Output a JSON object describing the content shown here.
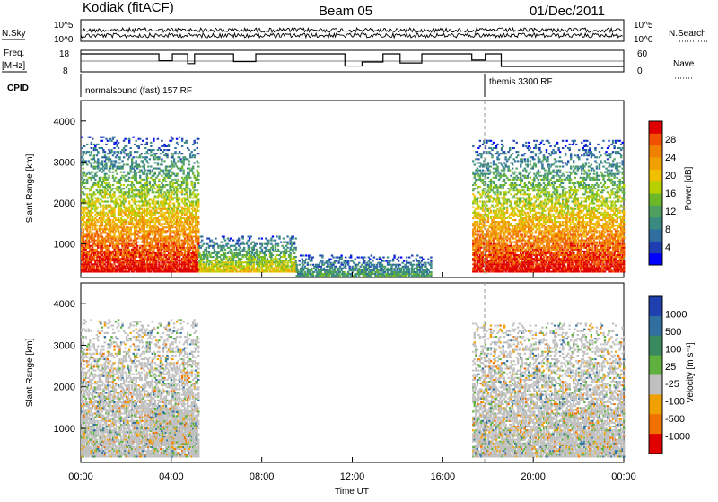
{
  "header": {
    "station": "Kodiak (fitACF)",
    "beam": "Beam 05",
    "date": "01/Dec/2011"
  },
  "noise_panel": {
    "left_label": "N.Sky",
    "right_label": "N.Search",
    "left_ticks": [
      "10^5",
      "10^0"
    ],
    "right_ticks": [
      "10^5",
      "10^0"
    ]
  },
  "freq_panel": {
    "left_label_1": "Freq.",
    "left_label_2": "[MHz]",
    "right_label": "Nave",
    "left_ticks": [
      "18",
      "8"
    ],
    "right_ticks": [
      "60",
      "0"
    ],
    "freq_range": [
      8,
      18
    ],
    "nave_range": [
      0,
      60
    ]
  },
  "cpid_panel": {
    "label": "CPID",
    "modes": [
      {
        "name": "normalsound (fast) 157 RF",
        "start_hour": 0
      },
      {
        "name": "themis 3300 RF",
        "start_hour": 18
      }
    ]
  },
  "chart_data": [
    {
      "type": "heatmap",
      "name": "Power",
      "ylabel": "Slant Range [km]",
      "xlabel": "Time UT",
      "ylim": [
        180,
        4500
      ],
      "xlim": [
        0,
        24
      ],
      "y_ticks": [
        1000,
        2000,
        3000,
        4000
      ],
      "x_ticks": [
        "00:00",
        "04:00",
        "08:00",
        "12:00",
        "16:00",
        "20:00",
        "00:00"
      ],
      "colorbar": {
        "label": "Power [dB]",
        "range": [
          0,
          32
        ],
        "ticks": [
          "4",
          "8",
          "12",
          "16",
          "20",
          "24",
          "28"
        ],
        "colors": [
          "#0000ff",
          "#1e3fb4",
          "#2e6ea0",
          "#3a8a80",
          "#4ea060",
          "#6cb82a",
          "#b8d000",
          "#f0c000",
          "#f0a000",
          "#f08000",
          "#f05000",
          "#e00000"
        ]
      },
      "regions": [
        {
          "t": [
            0.0,
            5.2
          ],
          "range": [
            300,
            3600
          ],
          "peak_dB": 28
        },
        {
          "t": [
            5.2,
            9.5
          ],
          "range": [
            300,
            1200
          ],
          "peak_dB": 16
        },
        {
          "t": [
            9.5,
            15.5
          ],
          "range": [
            200,
            700
          ],
          "peak_dB": 8
        },
        {
          "t": [
            17.3,
            24.0
          ],
          "range": [
            300,
            3500
          ],
          "peak_dB": 28
        }
      ]
    },
    {
      "type": "heatmap",
      "name": "Velocity",
      "ylabel": "Slant Range [km]",
      "xlabel": "Time UT",
      "ylim": [
        180,
        4500
      ],
      "xlim": [
        0,
        24
      ],
      "y_ticks": [
        1000,
        2000,
        3000,
        4000
      ],
      "x_ticks": [
        "00:00",
        "04:00",
        "08:00",
        "12:00",
        "16:00",
        "20:00",
        "00:00"
      ],
      "colorbar": {
        "label": "Velocity [m s⁻¹]",
        "ticks": [
          "1000",
          "500",
          "100",
          "25",
          "-25",
          "-100",
          "-500",
          "-1000"
        ],
        "colors": [
          "#2040b0",
          "#3070a0",
          "#3a8a60",
          "#60b040",
          "#c0c0c0",
          "#f0a000",
          "#f07000",
          "#e00000"
        ]
      },
      "regions": [
        {
          "t": [
            0.0,
            5.2
          ],
          "range": [
            300,
            3600
          ],
          "typical_velocity": "-25..25"
        },
        {
          "t": [
            3.0,
            5.0
          ],
          "range": [
            600,
            1500
          ],
          "typical_velocity": "100..-100"
        },
        {
          "t": [
            17.3,
            24.0
          ],
          "range": [
            300,
            3500
          ],
          "typical_velocity": "-25..25"
        }
      ]
    }
  ]
}
